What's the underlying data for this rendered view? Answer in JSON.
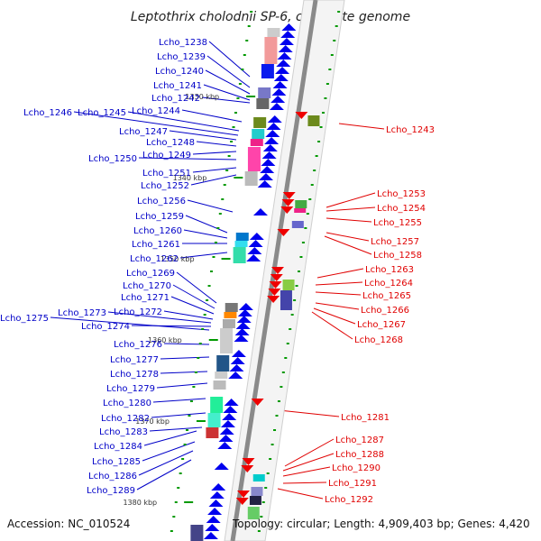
{
  "title": "Leptothrix cholodnii SP-6, complete genome",
  "footer": {
    "accession": "Accession: NC_010524",
    "topology": "Topology: circular; Length: 4,909,403 bp; Genes: 4,420"
  },
  "colors": {
    "backbone": "#8a8a8a",
    "left_label": "#0000c8",
    "right_label": "#e00000",
    "forward_gene": "#0000ee",
    "reverse_gene": "#ee0000",
    "tick": "#009900",
    "ruler_text": "#333333"
  },
  "ruler_labels": [
    "1330 kbp",
    "1340 kbp",
    "1350 kbp",
    "1360 kbp",
    "1370 kbp",
    "1380 kbp"
  ],
  "left_genes": [
    "Lcho_1238",
    "Lcho_1239",
    "Lcho_1240",
    "Lcho_1241",
    "Lcho_1242",
    "Lcho_1244",
    "Lcho_1245",
    "Lcho_1246",
    "Lcho_1247",
    "Lcho_1248",
    "Lcho_1249",
    "Lcho_1250",
    "Lcho_1251",
    "Lcho_1252",
    "Lcho_1256",
    "Lcho_1259",
    "Lcho_1260",
    "Lcho_1261",
    "Lcho_1262",
    "Lcho_1269",
    "Lcho_1270",
    "Lcho_1271",
    "Lcho_1272",
    "Lcho_1273",
    "Lcho_1274",
    "Lcho_1275",
    "Lcho_1276",
    "Lcho_1277",
    "Lcho_1278",
    "Lcho_1279",
    "Lcho_1280",
    "Lcho_1282",
    "Lcho_1283",
    "Lcho_1284",
    "Lcho_1285",
    "Lcho_1286",
    "Lcho_1289"
  ],
  "right_genes": [
    "Lcho_1243",
    "Lcho_1253",
    "Lcho_1254",
    "Lcho_1255",
    "Lcho_1257",
    "Lcho_1258",
    "Lcho_1263",
    "Lcho_1264",
    "Lcho_1265",
    "Lcho_1266",
    "Lcho_1267",
    "Lcho_1268",
    "Lcho_1281",
    "Lcho_1287",
    "Lcho_1288",
    "Lcho_1290",
    "Lcho_1291",
    "Lcho_1292"
  ]
}
